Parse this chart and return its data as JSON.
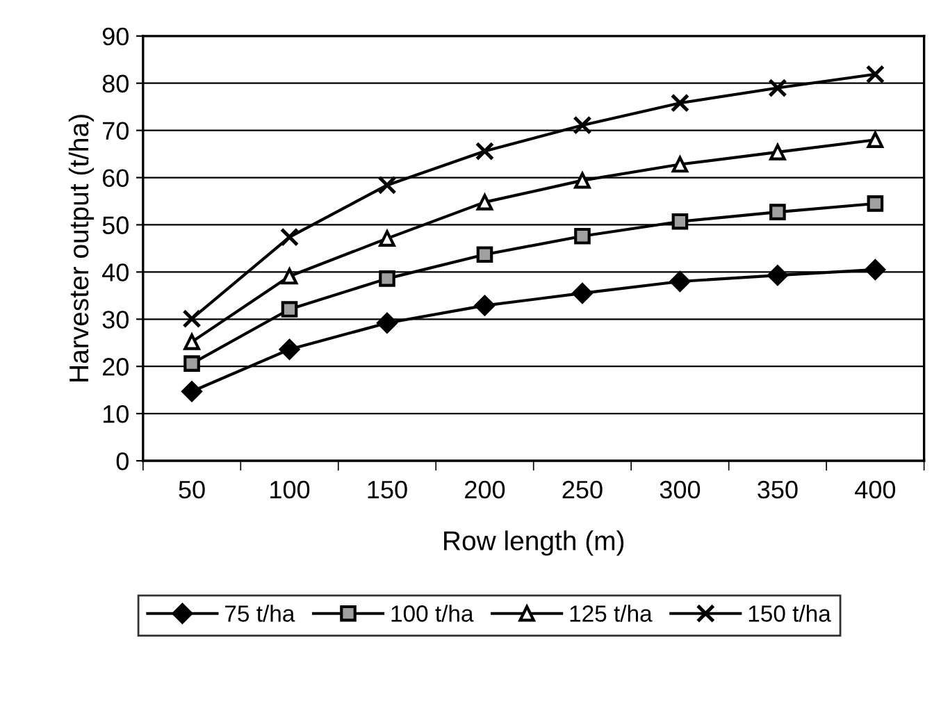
{
  "chart_data": {
    "type": "line",
    "xlabel": "Row length (m)",
    "ylabel": "Harvester output (t/ha)",
    "categories": [
      "50",
      "100",
      "150",
      "200",
      "250",
      "300",
      "350",
      "400"
    ],
    "ylim": [
      0,
      90
    ],
    "yticks": [
      0,
      10,
      20,
      30,
      40,
      50,
      60,
      70,
      80,
      90
    ],
    "grid": "y",
    "legend": "bottom",
    "series": [
      {
        "name": "75 t/ha",
        "color": "#000000",
        "marker": "diamond",
        "values": [
          14.7,
          23.6,
          29.2,
          32.9,
          35.5,
          38.0,
          39.3,
          40.5
        ]
      },
      {
        "name": "100 t/ha",
        "color": "#000000",
        "marker": "square",
        "values": [
          20.6,
          32.1,
          38.6,
          43.7,
          47.6,
          50.7,
          52.7,
          54.5
        ]
      },
      {
        "name": "125 t/ha",
        "color": "#000000",
        "marker": "triangle",
        "values": [
          25.2,
          39.1,
          47.1,
          54.8,
          59.4,
          62.8,
          65.4,
          68.0
        ]
      },
      {
        "name": "150 t/ha",
        "color": "#000000",
        "marker": "cross",
        "values": [
          30.1,
          47.4,
          58.4,
          65.6,
          71.1,
          75.8,
          79.0,
          81.9
        ]
      }
    ]
  }
}
